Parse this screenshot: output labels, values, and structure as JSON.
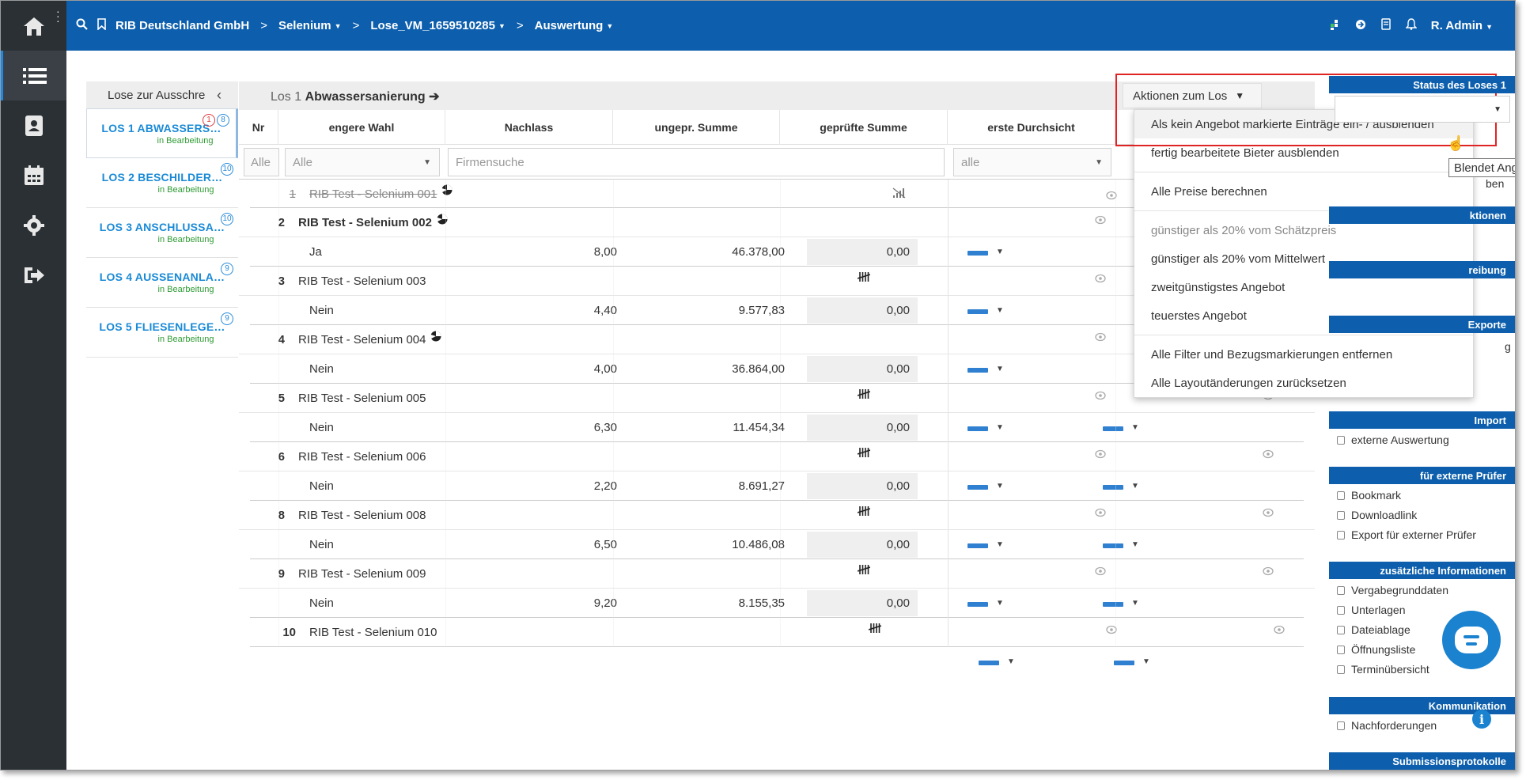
{
  "topbar": {
    "breadcrumbs": [
      {
        "label": "RIB Deutschland GmbH",
        "dropdown": false
      },
      {
        "label": "Selenium",
        "dropdown": true
      },
      {
        "label": "Lose_VM_1659510285",
        "dropdown": true
      },
      {
        "label": "Auswertung",
        "dropdown": true
      }
    ],
    "user": "R. Admin"
  },
  "lots_panel": {
    "title": "Lose zur Ausschre",
    "items": [
      {
        "name": "LOS 1 ABWASSERS…",
        "status": "in Bearbeitung",
        "badge": "8",
        "red_badge": "1"
      },
      {
        "name": "LOS 2 BESCHILDER…",
        "status": "in Bearbeitung",
        "badge": "10"
      },
      {
        "name": "LOS 3 ANSCHLUSSA…",
        "status": "in Bearbeitung",
        "badge": "10"
      },
      {
        "name": "LOS 4 AUSSENANLA…",
        "status": "in Bearbeitung",
        "badge": "9"
      },
      {
        "name": "LOS 5 FLIESENLEGE…",
        "status": "in Bearbeitung",
        "badge": "9"
      }
    ]
  },
  "main": {
    "title_prefix": "Los 1",
    "title_bold": "Abwassersanierung",
    "title_arrow": "➔",
    "actions_label": "Aktionen zum Los",
    "columns": [
      "Nr",
      "engere Wahl",
      "Nachlass",
      "ungepr. Summe",
      "geprüfte Summe",
      "erste Durchsicht"
    ],
    "filters": {
      "nr": "Alle",
      "engere_wahl": "Alle",
      "firmensuche_placeholder": "Firmensuche",
      "durchsicht": "alle"
    },
    "rows": [
      {
        "nr": "1",
        "bidder": "RIB Test - Selenium 001",
        "strike": true,
        "icon": "pie"
      },
      {
        "nr": "2",
        "bidder": "RIB Test - Selenium 002",
        "bold": true,
        "icon": "pie",
        "wahl": "Ja",
        "nachlass": "8,00",
        "ungepr": "46.378,00",
        "gepr": "0,00"
      },
      {
        "nr": "3",
        "bidder": "RIB Test - Selenium 003",
        "icon": "tally",
        "wahl": "Nein",
        "nachlass": "4,40",
        "ungepr": "9.577,83",
        "gepr": "0,00"
      },
      {
        "nr": "4",
        "bidder": "RIB Test - Selenium 004",
        "icon": "pie",
        "wahl": "Nein",
        "nachlass": "4,00",
        "ungepr": "36.864,00",
        "gepr": "0,00"
      },
      {
        "nr": "5",
        "bidder": "RIB Test - Selenium 005",
        "icon": "tally",
        "wahl": "Nein",
        "nachlass": "6,30",
        "ungepr": "11.454,34",
        "gepr": "0,00"
      },
      {
        "nr": "6",
        "bidder": "RIB Test - Selenium 006",
        "icon": "tally",
        "wahl": "Nein",
        "nachlass": "2,20",
        "ungepr": "8.691,27",
        "gepr": "0,00"
      },
      {
        "nr": "8",
        "bidder": "RIB Test - Selenium 008",
        "icon": "tally",
        "wahl": "Nein",
        "nachlass": "6,50",
        "ungepr": "10.486,08",
        "gepr": "0,00"
      },
      {
        "nr": "9",
        "bidder": "RIB Test - Selenium 009",
        "icon": "tally",
        "wahl": "Nein",
        "nachlass": "9,20",
        "ungepr": "8.155,35",
        "gepr": "0,00"
      },
      {
        "nr": "10",
        "bidder": "RIB Test - Selenium 010",
        "icon": "tally"
      }
    ]
  },
  "menu": {
    "items": [
      {
        "label": "Als kein Angebot markierte Einträge ein- / ausblenden",
        "hover": true
      },
      {
        "label": "fertig bearbeitete Bieter ausblenden"
      },
      {
        "sep": true
      },
      {
        "label": "Alle Preise berechnen"
      },
      {
        "sep": true
      },
      {
        "label": "günstiger als 20% vom Schätzpreis",
        "dim": true
      },
      {
        "label": "günstiger als 20% vom Mittelwert"
      },
      {
        "label": "zweitgünstigstes Angebot"
      },
      {
        "label": "teuerstes Angebot"
      },
      {
        "sep": true
      },
      {
        "label": "Alle Filter und Bezugsmarkierungen entfernen"
      },
      {
        "label": "Alle Layoutänderungen zurücksetzen"
      }
    ],
    "tooltip": "Blendet Angebo"
  },
  "right_panel": {
    "status_header": "Status des Loses 1",
    "partial": {
      "a": "ben",
      "b": "ktionen",
      "c": "reibung",
      "d": "Exporte",
      "e": "g"
    },
    "import_header": "Import",
    "import_items": [
      "externe Auswertung"
    ],
    "pruefer_header": "für externe Prüfer",
    "pruefer_items": [
      "Bookmark",
      "Downloadlink",
      "Export für externer Prüfer"
    ],
    "info_header": "zusätzliche Informationen",
    "info_items": [
      "Vergabegrunddaten",
      "Unterlagen",
      "Dateiablage",
      "Öffnungsliste",
      "Terminübersicht"
    ],
    "komm_header": "Kommunikation",
    "komm_items": [
      "Nachforderungen"
    ],
    "sub_header": "Submissionsprotokolle"
  },
  "colors": {
    "brand": "#0d5fad",
    "rail": "#2b3035",
    "highlight": "#e02424",
    "link": "#1a8ad6",
    "status_green": "#2e9a34"
  }
}
